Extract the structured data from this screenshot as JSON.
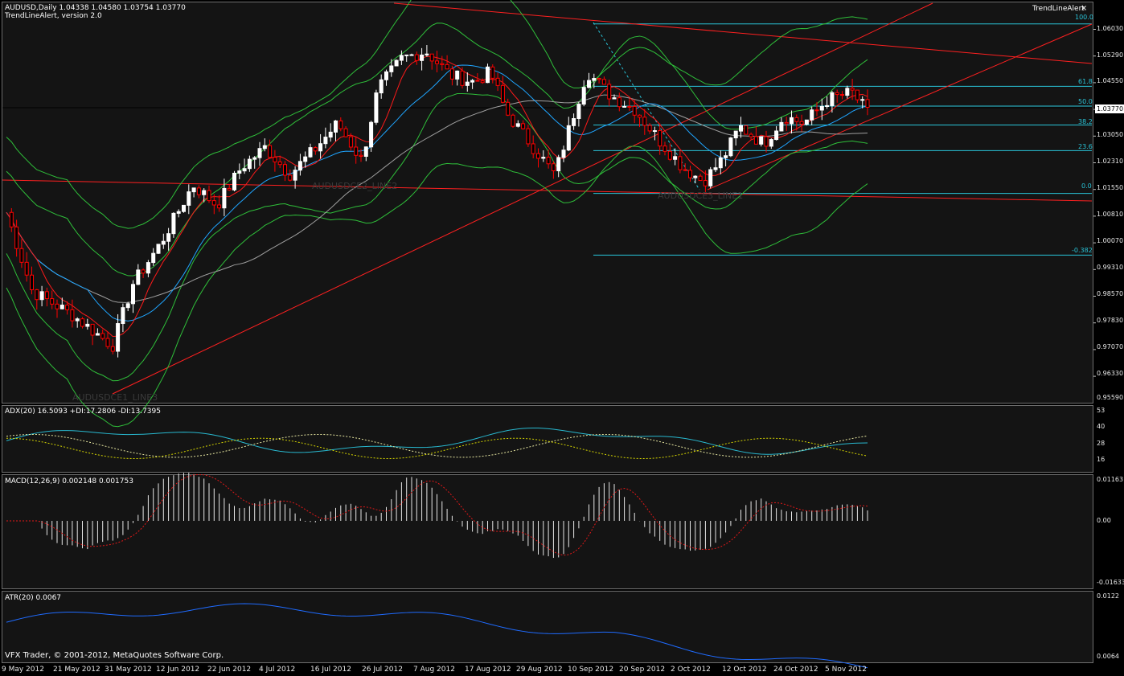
{
  "main": {
    "symbol_line": "AUDUSD,Daily  1.04338 1.04580 1.03754 1.03770",
    "indicator_line": "TrendLineAlert, version 2.0",
    "alert_label": "TrendLineAlert",
    "close_glyph": "×",
    "trendline_labels": [
      "AUDUSDCE2_LINE2",
      "AUDUSDCE1_LINE3",
      "AUDUSDCE3_LINE1"
    ],
    "current_price": "1.03770",
    "price_axis": [
      "1.06030",
      "1.05290",
      "1.04550",
      "1.03050",
      "1.02310",
      "1.01550",
      "1.00810",
      "1.00070",
      "0.99310",
      "0.98570",
      "0.97830",
      "0.97070",
      "0.96330",
      "0.95590"
    ],
    "fib_levels": [
      {
        "label": "100.0",
        "price": 1.064
      },
      {
        "label": "61.8",
        "price": 1.0458
      },
      {
        "label": "50.0",
        "price": 1.04
      },
      {
        "label": "38.2",
        "price": 1.0345
      },
      {
        "label": "23.6",
        "price": 1.027
      },
      {
        "label": "0.0",
        "price": 1.0145
      },
      {
        "label": "-0.382",
        "price": 0.9965
      }
    ],
    "colors": {
      "candle_up": "#ffffff",
      "candle_down": "#ff0000",
      "bb_line": "#2fbf3a",
      "ma_fast": "#ff1a1a",
      "ma_mid": "#1fa5ff",
      "ma_slow": "#a0a0a0",
      "trend": "#ff2020",
      "fib": "#29c4d8"
    }
  },
  "adx": {
    "label": "ADX(20) 16.5093 +DI:17.2806 -DI:13.7395",
    "axis": [
      "53",
      "40",
      "28",
      "16"
    ]
  },
  "macd": {
    "label": "MACD(12,26,9) 0.002148 0.001753",
    "axis": [
      "0.01163",
      "0.00",
      "-0.01633"
    ]
  },
  "atr": {
    "label": "ATR(20) 0.0067",
    "axis": [
      "0.0122",
      "0.0064"
    ]
  },
  "footer": {
    "copyright": "VFX Trader, © 2001-2012, MetaQuotes Software Corp."
  },
  "time_axis": [
    "9 May 2012",
    "21 May 2012",
    "31 May 2012",
    "12 Jun 2012",
    "22 Jun 2012",
    "4 Jul 2012",
    "16 Jul 2012",
    "26 Jul 2012",
    "7 Aug 2012",
    "17 Aug 2012",
    "29 Aug 2012",
    "10 Sep 2012",
    "20 Sep 2012",
    "2 Oct 2012",
    "12 Oct 2012",
    "24 Oct 2012",
    "5 Nov 2012"
  ]
}
